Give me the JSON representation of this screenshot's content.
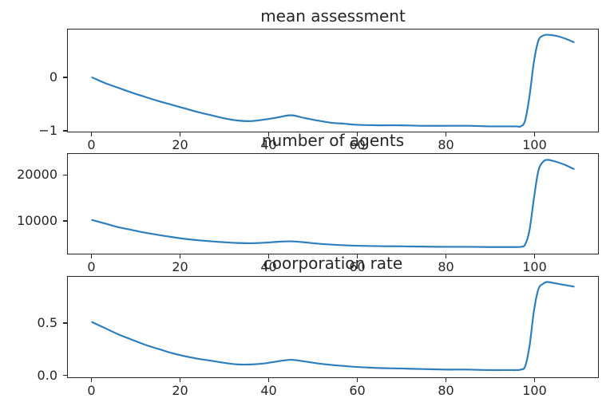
{
  "figure": {
    "background_color": "#ffffff",
    "text_color": "#262626",
    "spine_color": "#262626"
  },
  "chart_data": [
    {
      "type": "line",
      "title": "mean assessment",
      "x": [
        0,
        3,
        6,
        9,
        12,
        15,
        18,
        21,
        24,
        27,
        30,
        33,
        36,
        39,
        42,
        45,
        48,
        51,
        54,
        57,
        60,
        65,
        70,
        75,
        80,
        85,
        90,
        94,
        96,
        97,
        98,
        99,
        100,
        101,
        102,
        103,
        105,
        107,
        109
      ],
      "y": [
        0.0,
        -0.11,
        -0.2,
        -0.29,
        -0.37,
        -0.45,
        -0.52,
        -0.59,
        -0.66,
        -0.72,
        -0.78,
        -0.82,
        -0.83,
        -0.8,
        -0.76,
        -0.72,
        -0.77,
        -0.82,
        -0.86,
        -0.88,
        -0.9,
        -0.91,
        -0.91,
        -0.92,
        -0.92,
        -0.92,
        -0.93,
        -0.93,
        -0.93,
        -0.93,
        -0.82,
        -0.35,
        0.3,
        0.7,
        0.79,
        0.81,
        0.79,
        0.74,
        0.67
      ],
      "xlim": [
        -5.5,
        114.5
      ],
      "ylim": [
        -1.03,
        0.91
      ],
      "xticks": {
        "values": [
          0,
          20,
          40,
          60,
          80,
          100
        ],
        "labels": [
          "0",
          "20",
          "40",
          "60",
          "80",
          "100"
        ]
      },
      "yticks": {
        "values": [
          0,
          -1
        ],
        "labels": [
          "0",
          "−1"
        ]
      },
      "line_color": "#2e7ebc",
      "grid": false
    },
    {
      "type": "line",
      "title": "number of agents",
      "x": [
        0,
        3,
        6,
        9,
        12,
        15,
        18,
        21,
        24,
        27,
        30,
        33,
        36,
        39,
        42,
        45,
        48,
        51,
        54,
        57,
        60,
        65,
        70,
        75,
        80,
        85,
        90,
        94,
        96,
        97,
        98,
        99,
        100,
        101,
        102,
        103,
        105,
        107,
        109
      ],
      "y": [
        10200,
        9400,
        8600,
        8000,
        7400,
        6900,
        6450,
        6050,
        5750,
        5500,
        5300,
        5150,
        5100,
        5200,
        5400,
        5500,
        5300,
        5000,
        4800,
        4650,
        4550,
        4450,
        4400,
        4350,
        4300,
        4300,
        4250,
        4250,
        4250,
        4300,
        4800,
        8000,
        15000,
        21000,
        22900,
        23400,
        23000,
        22300,
        21400
      ],
      "xlim": [
        -5.5,
        114.5
      ],
      "ylim": [
        2800,
        24700
      ],
      "xticks": {
        "values": [
          0,
          20,
          40,
          60,
          80,
          100
        ],
        "labels": [
          "0",
          "20",
          "40",
          "60",
          "80",
          "100"
        ]
      },
      "yticks": {
        "values": [
          10000,
          20000
        ],
        "labels": [
          "10000",
          "20000"
        ]
      },
      "line_color": "#2e7ebc",
      "grid": false
    },
    {
      "type": "line",
      "title": "coorporation rate",
      "x": [
        0,
        3,
        6,
        9,
        12,
        15,
        18,
        21,
        24,
        27,
        30,
        33,
        36,
        39,
        42,
        45,
        48,
        51,
        54,
        57,
        60,
        65,
        70,
        75,
        80,
        85,
        90,
        94,
        96,
        97,
        98,
        99,
        100,
        101,
        102,
        103,
        105,
        107,
        109
      ],
      "y": [
        0.51,
        0.45,
        0.39,
        0.34,
        0.29,
        0.25,
        0.21,
        0.18,
        0.155,
        0.135,
        0.115,
        0.1,
        0.1,
        0.11,
        0.13,
        0.145,
        0.13,
        0.11,
        0.095,
        0.085,
        0.075,
        0.065,
        0.06,
        0.055,
        0.05,
        0.05,
        0.045,
        0.045,
        0.045,
        0.05,
        0.08,
        0.28,
        0.62,
        0.83,
        0.88,
        0.9,
        0.885,
        0.87,
        0.855
      ],
      "xlim": [
        -5.5,
        114.5
      ],
      "ylim": [
        -0.025,
        0.95
      ],
      "xticks": {
        "values": [
          0,
          20,
          40,
          60,
          80,
          100
        ],
        "labels": [
          "0",
          "20",
          "40",
          "60",
          "80",
          "100"
        ]
      },
      "yticks": {
        "values": [
          0.0,
          0.5
        ],
        "labels": [
          "0.0",
          "0.5"
        ]
      },
      "line_color": "#2e7ebc",
      "grid": false
    }
  ]
}
